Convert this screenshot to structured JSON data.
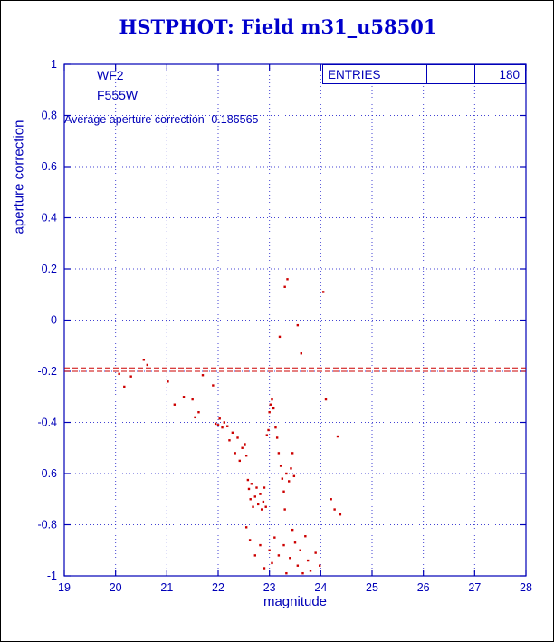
{
  "header": {
    "title": "HSTPHOT: Field m31_u58501"
  },
  "annotations": {
    "camera": "WF2",
    "filter": "F555W",
    "average_note": "Average aperture correction -0.186565"
  },
  "entries": {
    "label": "ENTRIES",
    "value": "180"
  },
  "colors": {
    "axis_blue": "#0000b8",
    "grid_blue": "#2222cc",
    "title_blue": "#0000cc",
    "point_red": "#cc0000"
  },
  "chart_data": {
    "type": "scatter",
    "title": "HSTPHOT: Field m31_u58501",
    "xlabel": "magnitude",
    "ylabel": "aperture correction",
    "xlim": [
      19,
      28
    ],
    "ylim": [
      -1,
      1
    ],
    "xticks": [
      19,
      20,
      21,
      22,
      23,
      24,
      25,
      26,
      27,
      28
    ],
    "yticks": [
      1,
      0.8,
      0.6,
      0.4,
      0.2,
      0,
      -0.2,
      -0.4,
      -0.6,
      -0.8,
      -1
    ],
    "grid": true,
    "legend": "none",
    "entries": 180,
    "average_aperture_correction": -0.186565,
    "reference_lines": [
      -0.186565,
      -0.2
    ],
    "points": [
      [
        20.07,
        -0.21
      ],
      [
        20.17,
        -0.26
      ],
      [
        20.3,
        -0.22
      ],
      [
        20.55,
        -0.155
      ],
      [
        20.62,
        -0.175
      ],
      [
        21.02,
        -0.24
      ],
      [
        21.15,
        -0.33
      ],
      [
        21.33,
        -0.3
      ],
      [
        21.5,
        -0.31
      ],
      [
        21.55,
        -0.38
      ],
      [
        21.62,
        -0.36
      ],
      [
        21.7,
        -0.215
      ],
      [
        21.9,
        -0.255
      ],
      [
        21.95,
        -0.405
      ],
      [
        22.0,
        -0.41
      ],
      [
        22.03,
        -0.385
      ],
      [
        22.08,
        -0.42
      ],
      [
        22.12,
        -0.4
      ],
      [
        22.18,
        -0.415
      ],
      [
        22.22,
        -0.47
      ],
      [
        22.28,
        -0.44
      ],
      [
        22.33,
        -0.52
      ],
      [
        22.38,
        -0.46
      ],
      [
        22.42,
        -0.55
      ],
      [
        22.47,
        -0.5
      ],
      [
        22.52,
        -0.485
      ],
      [
        22.55,
        -0.53
      ],
      [
        22.58,
        -0.625
      ],
      [
        22.6,
        -0.66
      ],
      [
        22.63,
        -0.7
      ],
      [
        22.65,
        -0.64
      ],
      [
        22.68,
        -0.73
      ],
      [
        22.72,
        -0.69
      ],
      [
        22.75,
        -0.655
      ],
      [
        22.78,
        -0.72
      ],
      [
        22.82,
        -0.68
      ],
      [
        22.85,
        -0.74
      ],
      [
        22.88,
        -0.71
      ],
      [
        22.9,
        -0.655
      ],
      [
        22.93,
        -0.73
      ],
      [
        22.95,
        -0.45
      ],
      [
        22.98,
        -0.43
      ],
      [
        23.0,
        -0.36
      ],
      [
        23.02,
        -0.33
      ],
      [
        23.05,
        -0.31
      ],
      [
        23.08,
        -0.345
      ],
      [
        23.12,
        -0.42
      ],
      [
        23.15,
        -0.46
      ],
      [
        23.18,
        -0.52
      ],
      [
        23.22,
        -0.57
      ],
      [
        23.25,
        -0.62
      ],
      [
        23.28,
        -0.67
      ],
      [
        23.3,
        -0.74
      ],
      [
        23.33,
        -0.6
      ],
      [
        23.38,
        -0.63
      ],
      [
        23.42,
        -0.58
      ],
      [
        23.45,
        -0.52
      ],
      [
        23.48,
        -0.61
      ],
      [
        22.55,
        -0.81
      ],
      [
        22.62,
        -0.86
      ],
      [
        22.72,
        -0.92
      ],
      [
        22.82,
        -0.88
      ],
      [
        22.9,
        -0.97
      ],
      [
        23.0,
        -0.9
      ],
      [
        23.05,
        -0.95
      ],
      [
        23.1,
        -0.85
      ],
      [
        23.18,
        -0.92
      ],
      [
        23.28,
        -0.88
      ],
      [
        23.33,
        -0.99
      ],
      [
        23.4,
        -0.93
      ],
      [
        23.45,
        -0.82
      ],
      [
        23.5,
        -0.87
      ],
      [
        23.55,
        -0.96
      ],
      [
        23.6,
        -0.9
      ],
      [
        23.65,
        -0.99
      ],
      [
        23.7,
        -0.845
      ],
      [
        23.75,
        -0.94
      ],
      [
        23.8,
        -0.98
      ],
      [
        23.9,
        -0.91
      ],
      [
        23.98,
        -0.96
      ],
      [
        23.3,
        0.13
      ],
      [
        23.35,
        0.16
      ],
      [
        24.05,
        0.11
      ],
      [
        23.55,
        -0.02
      ],
      [
        23.2,
        -0.065
      ],
      [
        23.62,
        -0.13
      ],
      [
        24.1,
        -0.31
      ],
      [
        24.2,
        -0.7
      ],
      [
        24.27,
        -0.74
      ],
      [
        24.33,
        -0.455
      ],
      [
        24.38,
        -0.76
      ]
    ]
  }
}
